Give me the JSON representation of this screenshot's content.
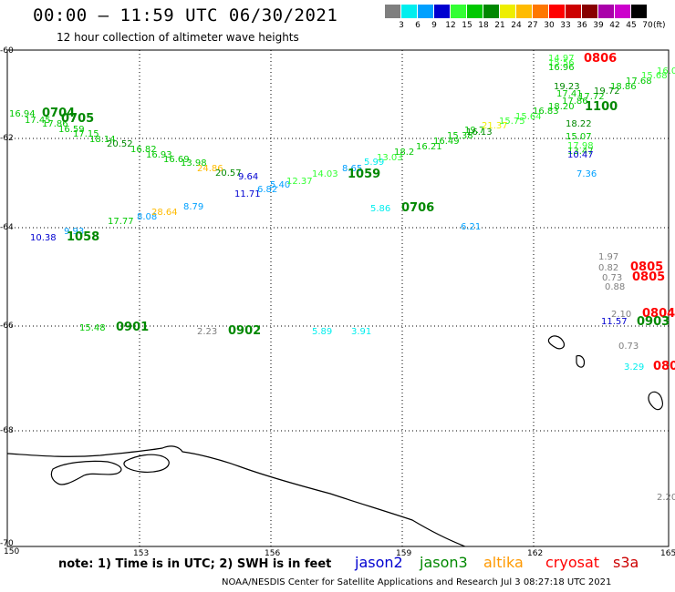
{
  "title": "00:00 – 11:59 UTC 06/30/2021",
  "subtitle": "12 hour collection of altimeter wave heights",
  "legend": {
    "unit": "(ft)",
    "bins": [
      {
        "label": "3",
        "color": "#7f7f7f"
      },
      {
        "label": "6",
        "color": "#00eeee"
      },
      {
        "label": "9",
        "color": "#00a0ff"
      },
      {
        "label": "12",
        "color": "#0000d0"
      },
      {
        "label": "15",
        "color": "#33ff33"
      },
      {
        "label": "18",
        "color": "#00c800"
      },
      {
        "label": "21",
        "color": "#008800"
      },
      {
        "label": "24",
        "color": "#eeee00"
      },
      {
        "label": "27",
        "color": "#ffbb00"
      },
      {
        "label": "30",
        "color": "#ff7700"
      },
      {
        "label": "33",
        "color": "#ff0000"
      },
      {
        "label": "36",
        "color": "#cc0000"
      },
      {
        "label": "39",
        "color": "#880000"
      },
      {
        "label": "42",
        "color": "#aa00aa"
      },
      {
        "label": "45",
        "color": "#cc00cc"
      },
      {
        "label": "70",
        "color": "#000000"
      }
    ]
  },
  "axes": {
    "lon_ticks": [
      "150",
      "153",
      "156",
      "159",
      "162",
      "165"
    ],
    "lat_ticks": [
      "-60",
      "-62",
      "-64",
      "-66",
      "-68",
      "-70"
    ]
  },
  "readings": [
    {
      "t": "16.94",
      "c": "#00c800"
    },
    {
      "t": "17.45",
      "c": "#00c800"
    },
    {
      "t": "17.86",
      "c": "#00c800"
    },
    {
      "t": "16.59",
      "c": "#00c800"
    },
    {
      "t": "17.15",
      "c": "#00c800"
    },
    {
      "t": "18.14",
      "c": "#00c800"
    },
    {
      "t": "20.52",
      "c": "#008800"
    },
    {
      "t": "16.82",
      "c": "#00c800"
    },
    {
      "t": "16.93",
      "c": "#00c800"
    },
    {
      "t": "16.69",
      "c": "#00c800"
    },
    {
      "t": "13.98",
      "c": "#00c800"
    },
    {
      "t": "24.86",
      "c": "#ffbb00"
    },
    {
      "t": "20.57",
      "c": "#008800"
    },
    {
      "t": "9.64",
      "c": "#0000d0"
    },
    {
      "t": "11.71",
      "c": "#0000d0"
    },
    {
      "t": "6.82",
      "c": "#00a0ff"
    },
    {
      "t": "5.40",
      "c": "#00a0ff"
    },
    {
      "t": "12.37",
      "c": "#33ff33"
    },
    {
      "t": "14.03",
      "c": "#33ff33"
    },
    {
      "t": "8.65",
      "c": "#00a0ff"
    },
    {
      "t": "5.99",
      "c": "#00eeee"
    },
    {
      "t": "13.03",
      "c": "#33ff33"
    },
    {
      "t": "18.2",
      "c": "#00c800"
    },
    {
      "t": "16.21",
      "c": "#00c800"
    },
    {
      "t": "16.49",
      "c": "#00c800"
    },
    {
      "t": "15.38",
      "c": "#00c800"
    },
    {
      "t": "19.7",
      "c": "#00c800"
    },
    {
      "t": "16.13",
      "c": "#008800"
    },
    {
      "t": "21.37",
      "c": "#eeee00"
    },
    {
      "t": "15.75",
      "c": "#33ff33"
    },
    {
      "t": "15.64",
      "c": "#33ff33"
    },
    {
      "t": "16.83",
      "c": "#00c800"
    },
    {
      "t": "18.20",
      "c": "#00c800"
    },
    {
      "t": "17.86",
      "c": "#00c800"
    },
    {
      "t": "17.72",
      "c": "#00c800"
    },
    {
      "t": "17.41",
      "c": "#00c800"
    },
    {
      "t": "19.23",
      "c": "#008800"
    },
    {
      "t": "19.72",
      "c": "#008800"
    },
    {
      "t": "18.86",
      "c": "#00c800"
    },
    {
      "t": "17.68",
      "c": "#00c800"
    },
    {
      "t": "15.68",
      "c": "#33ff33"
    },
    {
      "t": "16.0",
      "c": "#33ff33"
    },
    {
      "t": "14.97",
      "c": "#33ff33"
    },
    {
      "t": "15.56",
      "c": "#33ff33"
    },
    {
      "t": "16.96",
      "c": "#00c800"
    },
    {
      "t": "18.22",
      "c": "#008800"
    },
    {
      "t": "15.07",
      "c": "#00c800"
    },
    {
      "t": "17.98",
      "c": "#33ff33"
    },
    {
      "t": "13.47",
      "c": "#00c800"
    },
    {
      "t": "10.47",
      "c": "#0000d0"
    },
    {
      "t": "7.36",
      "c": "#00a0ff"
    },
    {
      "t": "10.38",
      "c": "#0000d0"
    },
    {
      "t": "9.93",
      "c": "#00a0ff"
    },
    {
      "t": "17.77",
      "c": "#00c800"
    },
    {
      "t": "8.08",
      "c": "#00a0ff"
    },
    {
      "t": "28.64",
      "c": "#ffbb00"
    },
    {
      "t": "8.79",
      "c": "#00a0ff"
    },
    {
      "t": "5.86",
      "c": "#00eeee"
    },
    {
      "t": "6.21",
      "c": "#00a0ff"
    },
    {
      "t": "15.48",
      "c": "#00c800"
    },
    {
      "t": "2.23",
      "c": "#7f7f7f"
    },
    {
      "t": "5.89",
      "c": "#00eeee"
    },
    {
      "t": "3.91",
      "c": "#00eeee"
    },
    {
      "t": "1.97",
      "c": "#7f7f7f"
    },
    {
      "t": "0.82",
      "c": "#7f7f7f"
    },
    {
      "t": "0.73",
      "c": "#7f7f7f"
    },
    {
      "t": "0.88",
      "c": "#7f7f7f"
    },
    {
      "t": "2.10",
      "c": "#7f7f7f"
    },
    {
      "t": "11.57",
      "c": "#0000d0"
    },
    {
      "t": "0.73",
      "c": "#7f7f7f"
    },
    {
      "t": "3.29",
      "c": "#00eeee"
    },
    {
      "t": "2.20",
      "c": "#7f7f7f"
    }
  ],
  "time_labels": [
    {
      "t": "0704",
      "c": "#008800"
    },
    {
      "t": "0705",
      "c": "#008800"
    },
    {
      "t": "1059",
      "c": "#008800"
    },
    {
      "t": "0706",
      "c": "#008800"
    },
    {
      "t": "1058",
      "c": "#008800"
    },
    {
      "t": "0901",
      "c": "#008800"
    },
    {
      "t": "0902",
      "c": "#008800"
    },
    {
      "t": "0806",
      "c": "#ff0000"
    },
    {
      "t": "1100",
      "c": "#008800"
    },
    {
      "t": "0805",
      "c": "#ff0000"
    },
    {
      "t": "0805",
      "c": "#ff0000"
    },
    {
      "t": "0804",
      "c": "#ff0000"
    },
    {
      "t": "0903",
      "c": "#008800"
    },
    {
      "t": "080",
      "c": "#ff0000"
    }
  ],
  "footer": {
    "note": "note:  1) Time is in UTC;  2) SWH is in feet",
    "satellites": [
      {
        "name": "jason2",
        "color": "#0000d0"
      },
      {
        "name": "jason3",
        "color": "#008800"
      },
      {
        "name": "altika",
        "color": "#ff9900"
      },
      {
        "name": "cryosat",
        "color": "#ff0000"
      },
      {
        "name": "s3a",
        "color": "#cc0000"
      }
    ],
    "credit": "NOAA/NESDIS Center for Satellite Applications and Research    Jul  3 08:27:18 UTC 2021"
  }
}
